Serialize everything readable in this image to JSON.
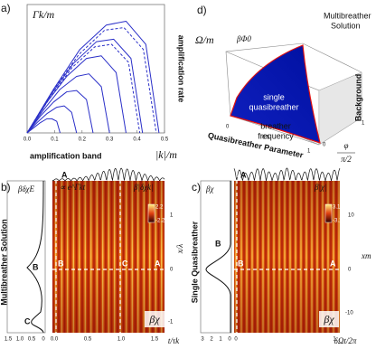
{
  "chart_data": [
    {
      "type": "line",
      "panel_label": "a)",
      "title": "Γk/m",
      "ylabel": "amplification rate",
      "xlabel": "amplification band",
      "xlabel_unit": "|k|/m",
      "xlim": [
        0,
        0.5
      ],
      "ylim": [
        0,
        1
      ],
      "xticks": [
        {
          "value": 0,
          "label": "0.0"
        },
        0.1,
        0.2,
        0.3,
        0.4,
        0.5
      ],
      "series": [
        {
          "color": "#2a2fc8",
          "dashed": false,
          "x": [
            0,
            0.096,
            0.192,
            0.288,
            0.36,
            0.432,
            0.48
          ],
          "values": [
            0,
            0.34,
            0.65,
            0.84,
            0.87,
            0.69,
            0
          ]
        },
        {
          "color": "#2a2fc8",
          "dashed": true,
          "x": [
            0,
            0.094,
            0.188,
            0.282,
            0.3525,
            0.423,
            0.47
          ],
          "values": [
            0,
            0.33,
            0.61,
            0.8,
            0.82,
            0.65,
            0
          ]
        },
        {
          "color": "#2a2fc8",
          "dashed": false,
          "x": [
            0,
            0.084,
            0.168,
            0.252,
            0.315,
            0.378,
            0.42
          ],
          "values": [
            0,
            0.29,
            0.54,
            0.71,
            0.73,
            0.58,
            0
          ]
        },
        {
          "color": "#2a2fc8",
          "dashed": true,
          "x": [
            0,
            0.082,
            0.164,
            0.246,
            0.3075,
            0.369,
            0.41
          ],
          "values": [
            0,
            0.27,
            0.51,
            0.67,
            0.69,
            0.55,
            0
          ]
        },
        {
          "color": "#2a2fc8",
          "dashed": false,
          "x": [
            0,
            0.072,
            0.144,
            0.216,
            0.27,
            0.324,
            0.36
          ],
          "values": [
            0,
            0.24,
            0.44,
            0.58,
            0.6,
            0.47,
            0
          ]
        },
        {
          "color": "#2a2fc8",
          "dashed": false,
          "x": [
            0,
            0.06,
            0.12,
            0.18,
            0.225,
            0.27,
            0.3
          ],
          "values": [
            0,
            0.18,
            0.34,
            0.44,
            0.46,
            0.36,
            0
          ]
        },
        {
          "color": "#2a2fc8",
          "dashed": false,
          "x": [
            0,
            0.048,
            0.096,
            0.144,
            0.18,
            0.216,
            0.24
          ],
          "values": [
            0,
            0.13,
            0.24,
            0.32,
            0.33,
            0.26,
            0
          ]
        },
        {
          "color": "#2a2fc8",
          "dashed": false,
          "x": [
            0,
            0.036,
            0.072,
            0.108,
            0.135,
            0.162,
            0.18
          ],
          "values": [
            0,
            0.08,
            0.15,
            0.2,
            0.21,
            0.16,
            0
          ]
        },
        {
          "color": "#2a2fc8",
          "dashed": false,
          "x": [
            0,
            0.024,
            0.048,
            0.072,
            0.09,
            0.108,
            0.12
          ],
          "values": [
            0,
            0.04,
            0.08,
            0.11,
            0.11,
            0.09,
            0
          ]
        }
      ]
    }
  ],
  "panel_d": {
    "label": "d)",
    "ylabel": "Ω/m",
    "phi": "βΦ0",
    "top_note": [
      "Multibreather",
      "Solution"
    ],
    "surface_label": [
      "single",
      "quasibreather"
    ],
    "curve_label": [
      "breather",
      "frequency"
    ],
    "xlabel": "Quasibreather Parameter",
    "zlabel": "Background",
    "phi_num": "φ",
    "phi_den": "π/2",
    "xticks": [
      "0",
      "0.5",
      "1"
    ],
    "zticks": [
      "0",
      "1"
    ]
  },
  "panel_b": {
    "label": "b)",
    "side_title": "Multibreather Solution",
    "profile_label": "βδχE",
    "letters": [
      "A",
      "B",
      "C"
    ],
    "growth": "∝ e^Γkt",
    "env_label": "β|δχk|",
    "cbar": [
      "2.2",
      "-2.2"
    ],
    "field": "βχ",
    "profile_ticks": [
      "1.5",
      "1.0",
      "0.5",
      "0"
    ],
    "tticks": [
      "0.0",
      "0.5",
      "1.0",
      "1.5"
    ],
    "tlabel": "t/τk",
    "xticks": [
      "1",
      "0",
      "-1"
    ],
    "xlabel": "x/λ"
  },
  "panel_c": {
    "label": "c)",
    "side_title": "Single Quasibreather",
    "profile_label": "βχ",
    "letters": [
      "A",
      "B"
    ],
    "env_label": "β|χ|",
    "cbar": [
      "3.1",
      "-3.1"
    ],
    "field": "βχ",
    "profile_ticks": [
      "3",
      "2",
      "1",
      "0"
    ],
    "tticks": [
      "0",
      "1"
    ],
    "tlabel": "δΩt/2π",
    "xticks": [
      "10",
      "0",
      "-10"
    ],
    "xlabel": "xm"
  }
}
